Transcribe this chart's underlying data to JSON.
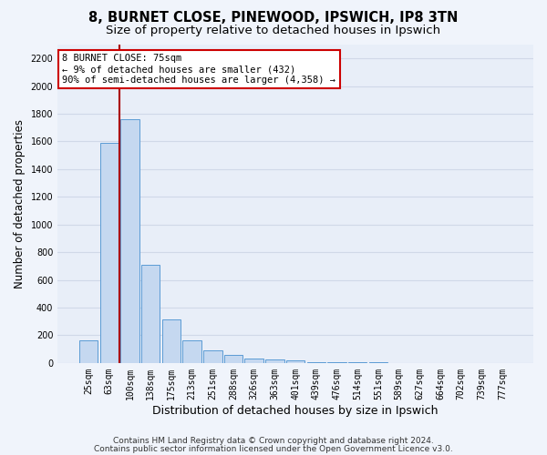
{
  "title1": "8, BURNET CLOSE, PINEWOOD, IPSWICH, IP8 3TN",
  "title2": "Size of property relative to detached houses in Ipswich",
  "xlabel": "Distribution of detached houses by size in Ipswich",
  "ylabel": "Number of detached properties",
  "categories": [
    "25sqm",
    "63sqm",
    "100sqm",
    "138sqm",
    "175sqm",
    "213sqm",
    "251sqm",
    "288sqm",
    "326sqm",
    "363sqm",
    "401sqm",
    "439sqm",
    "476sqm",
    "514sqm",
    "551sqm",
    "589sqm",
    "627sqm",
    "664sqm",
    "702sqm",
    "739sqm",
    "777sqm"
  ],
  "values": [
    160,
    1590,
    1760,
    710,
    315,
    160,
    90,
    55,
    35,
    25,
    20,
    5,
    5,
    5,
    5,
    0,
    0,
    0,
    0,
    0,
    0
  ],
  "bar_color": "#c5d8f0",
  "bar_edgecolor": "#5b9bd5",
  "vline_x": 1.5,
  "vline_color": "#aa0000",
  "annotation_line1": "8 BURNET CLOSE: 75sqm",
  "annotation_line2": "← 9% of detached houses are smaller (432)",
  "annotation_line3": "90% of semi-detached houses are larger (4,358) →",
  "annotation_box_facecolor": "#ffffff",
  "annotation_box_edgecolor": "#cc0000",
  "plot_bg_color": "#e8eef8",
  "fig_bg_color": "#f0f4fb",
  "grid_color": "#d0d8e8",
  "ylim": [
    0,
    2300
  ],
  "yticks": [
    0,
    200,
    400,
    600,
    800,
    1000,
    1200,
    1400,
    1600,
    1800,
    2000,
    2200
  ],
  "footer1": "Contains HM Land Registry data © Crown copyright and database right 2024.",
  "footer2": "Contains public sector information licensed under the Open Government Licence v3.0.",
  "title1_fontsize": 10.5,
  "title2_fontsize": 9.5,
  "xlabel_fontsize": 9,
  "ylabel_fontsize": 8.5,
  "tick_fontsize": 7,
  "footer_fontsize": 6.5
}
